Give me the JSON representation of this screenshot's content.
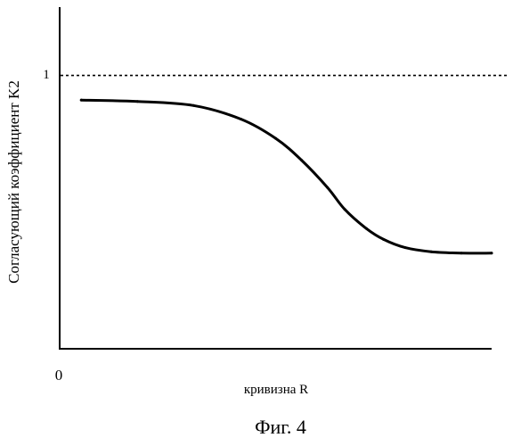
{
  "chart_data": {
    "type": "line",
    "title": "",
    "xlabel": "кривизна R",
    "ylabel": "Согласующий коэффициент K2",
    "origin_label": "0",
    "x_tick_labels": [],
    "y_tick_labels": [
      "1"
    ],
    "xlim": [
      0,
      1
    ],
    "ylim": [
      0,
      1.25
    ],
    "reference_line": {
      "y": 1,
      "style": "dashed"
    },
    "series": [
      {
        "x": [
          0.05,
          0.18,
          0.31,
          0.42,
          0.5,
          0.56,
          0.62,
          0.66,
          0.71,
          0.75,
          0.8,
          0.86,
          0.93,
          1.0
        ],
        "y": [
          0.91,
          0.905,
          0.89,
          0.84,
          0.77,
          0.69,
          0.59,
          0.51,
          0.44,
          0.4,
          0.37,
          0.355,
          0.35,
          0.35
        ]
      }
    ],
    "caption": "Фиг. 4"
  }
}
